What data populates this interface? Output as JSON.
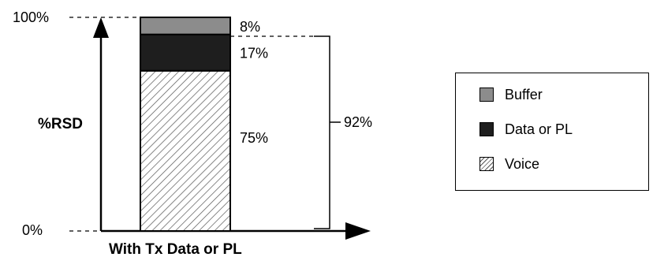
{
  "chart_data": {
    "type": "bar",
    "stacked": true,
    "categories": [
      "With Tx Data or PL"
    ],
    "series": [
      {
        "name": "Voice",
        "values": [
          75
        ],
        "label": "75%",
        "color": "#ffffff",
        "pattern": "hatch"
      },
      {
        "name": "Data or PL",
        "values": [
          17
        ],
        "label": "17%",
        "color": "#1e1e1e"
      },
      {
        "name": "Buffer",
        "values": [
          8
        ],
        "label": "8%",
        "color": "#8c8c8c"
      }
    ],
    "title": "",
    "xlabel": "With Tx Data or PL",
    "ylabel": "%RSD",
    "ylim": [
      0,
      100
    ],
    "y_ticks": [
      "0%",
      "100%"
    ],
    "bracket_label": "92%",
    "legend_position": "right"
  },
  "legend": [
    {
      "label": "Buffer",
      "swatch": "gray"
    },
    {
      "label": "Data or PL",
      "swatch": "dark"
    },
    {
      "label": "Voice",
      "swatch": "hatch"
    }
  ]
}
